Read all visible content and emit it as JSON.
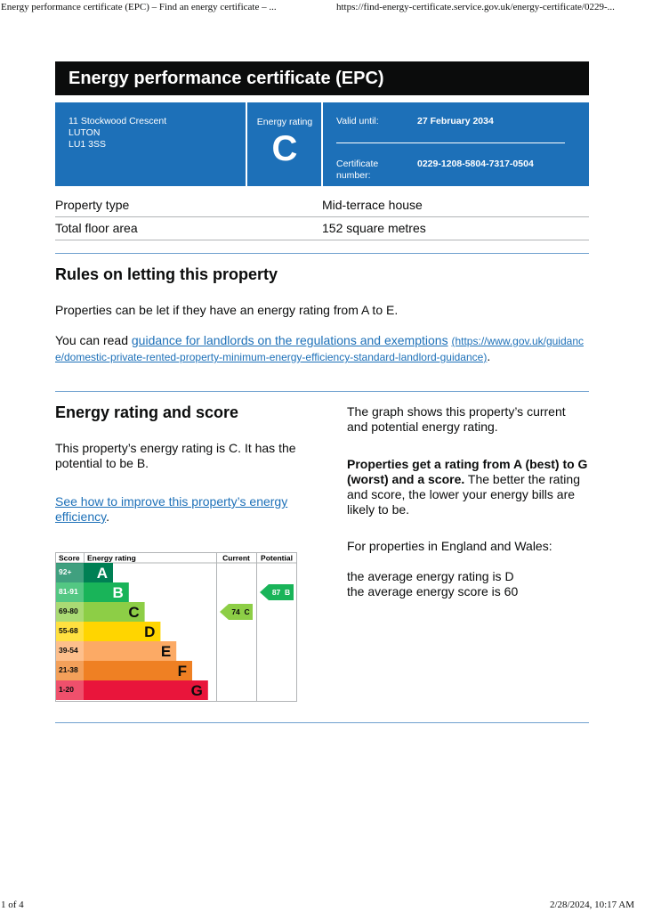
{
  "browser_header": {
    "title": "Energy performance certificate (EPC) – Find an energy certificate – ...",
    "url": "https://find-energy-certificate.service.gov.uk/energy-certificate/0229-..."
  },
  "browser_footer": {
    "page": "1 of 4",
    "datetime": "2/28/2024, 10:17 AM"
  },
  "header": {
    "title": "Energy performance certificate (EPC)"
  },
  "summary": {
    "address": [
      "11 Stockwood Crescent",
      "LUTON",
      "LU1 3SS"
    ],
    "rating_label": "Energy rating",
    "rating": "C",
    "valid_until_label": "Valid until:",
    "valid_until": "27 February 2034",
    "certificate_number_label": "Certificate number:",
    "certificate_number": "0229-1208-5804-7317-0504"
  },
  "property_table": {
    "rows": [
      [
        "Property type",
        "Mid-terrace house"
      ],
      [
        "Total floor area",
        "152 square metres"
      ]
    ]
  },
  "letting": {
    "heading": "Rules on letting this property",
    "paragraph": "Properties can be let if they have an energy rating from A to E.",
    "guidance_prefix": "You can read ",
    "guidance_link": "guidance for landlords on the regulations and exemptions",
    "guidance_url": "(https://www.gov.uk/guidance/domestic-private-rented-property-minimum-energy-efficiency-standard-landlord-guidance)",
    "guidance_suffix": "."
  },
  "energy": {
    "heading": "Energy rating and score",
    "rating_text": "This property’s energy rating is C. It has the potential to be B.",
    "improve_link": "See how to improve this property’s energy efficiency",
    "improve_suffix": ".",
    "graph_text": "The graph shows this property’s current and potential energy rating.",
    "scale_bold": "Properties get a rating from A (best) to G (worst) and a score.",
    "scale_text": " The better the rating and score, the lower your energy bills are likely to be.",
    "region_text": "For properties in England and Wales:",
    "average_rating": "the average energy rating is D",
    "average_score": "the average energy score is 60",
    "graph": {
      "headers": [
        "Score",
        "Energy rating",
        "Current",
        "Potential"
      ],
      "bands": [
        {
          "score": "92+",
          "letter": "A",
          "color": "#008054"
        },
        {
          "score": "81-91",
          "letter": "B",
          "color": "#19b459"
        },
        {
          "score": "69-80",
          "letter": "C",
          "color": "#8dce46"
        },
        {
          "score": "55-68",
          "letter": "D",
          "color": "#ffd500"
        },
        {
          "score": "39-54",
          "letter": "E",
          "color": "#fcaa65"
        },
        {
          "score": "21-38",
          "letter": "F",
          "color": "#ef8023"
        },
        {
          "score": "1-20",
          "letter": "G",
          "color": "#e9153b"
        }
      ],
      "current": {
        "score": 74,
        "letter": "C"
      },
      "potential": {
        "score": 87,
        "letter": "B"
      }
    }
  }
}
